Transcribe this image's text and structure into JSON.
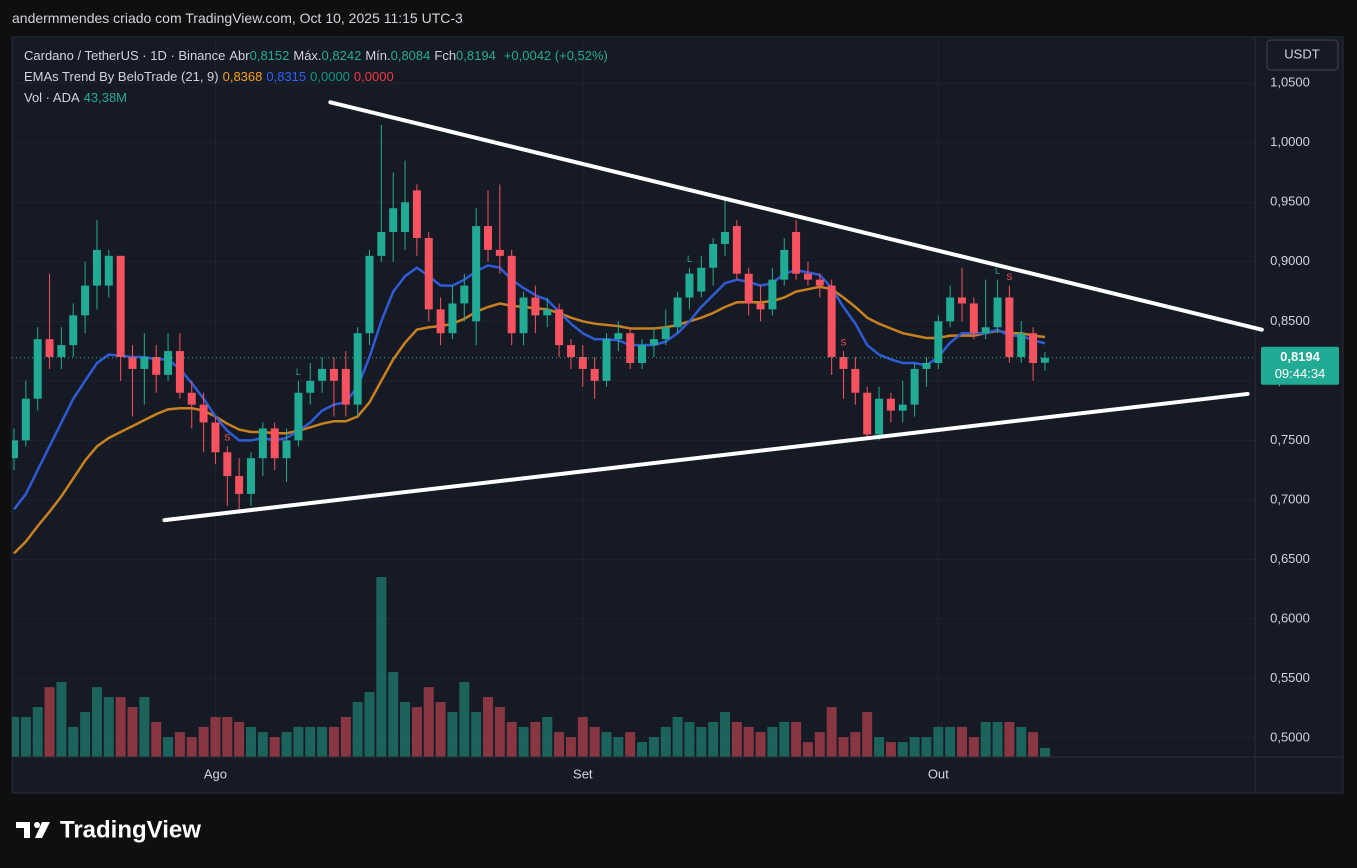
{
  "header": {
    "caption": "andermmendes criado com TradingView.com, Oct 10, 2025 11:15 UTC-3"
  },
  "chart_data": {
    "type": "candlestick",
    "symbol": "Cardano / TetherUS · 1D · Binance",
    "ohlc_keys": [
      "Abr",
      "Máx.",
      "Mín.",
      "Fch"
    ],
    "ohlc_labels": [
      "0,8152",
      "0,8242",
      "0,8084",
      "0,8194"
    ],
    "change_label": "+0,0042 (+0,52%)",
    "indicator": {
      "name": "EMAs Trend By BeloTrade (21, 9)",
      "value_labels": [
        "0,8368",
        "0,8315",
        "0,0000",
        "0,0000"
      ],
      "value_colors": [
        "#f7a21b",
        "#2962ff",
        "#089981",
        "#f23645"
      ]
    },
    "volume_title": "Vol · ADA",
    "volume_label": "43,38M",
    "categories": [
      null,
      null,
      null,
      null,
      null,
      null,
      null,
      null,
      null,
      null,
      null,
      null,
      null,
      null,
      null,
      null,
      null,
      "Ago",
      null,
      null,
      null,
      null,
      null,
      null,
      null,
      null,
      null,
      null,
      null,
      null,
      null,
      null,
      null,
      null,
      null,
      null,
      null,
      null,
      null,
      null,
      null,
      null,
      null,
      null,
      null,
      null,
      null,
      null,
      "Set",
      null,
      null,
      null,
      null,
      null,
      null,
      null,
      null,
      null,
      null,
      null,
      null,
      null,
      null,
      null,
      null,
      null,
      null,
      null,
      null,
      null,
      null,
      null,
      null,
      null,
      null,
      null,
      null,
      null,
      "Out",
      null,
      null,
      null,
      null,
      null,
      null,
      null,
      null,
      null
    ],
    "open": [
      0.735,
      0.75,
      0.785,
      0.835,
      0.82,
      0.83,
      0.855,
      0.88,
      0.88,
      0.905,
      0.82,
      0.81,
      0.82,
      0.805,
      0.825,
      0.79,
      0.78,
      0.765,
      0.74,
      0.72,
      0.705,
      0.735,
      0.76,
      0.735,
      0.75,
      0.79,
      0.8,
      0.81,
      0.81,
      0.78,
      0.84,
      0.905,
      0.925,
      0.925,
      0.96,
      0.92,
      0.86,
      0.84,
      0.865,
      0.85,
      0.93,
      0.91,
      0.905,
      0.84,
      0.87,
      0.855,
      0.86,
      0.83,
      0.82,
      0.81,
      0.8,
      0.835,
      0.84,
      0.815,
      0.83,
      0.835,
      0.845,
      0.87,
      0.875,
      0.895,
      0.915,
      0.93,
      0.89,
      0.865,
      0.86,
      0.885,
      0.925,
      0.89,
      0.885,
      0.88,
      0.82,
      0.81,
      0.79,
      0.755,
      0.785,
      0.775,
      0.78,
      0.81,
      0.815,
      0.85,
      0.87,
      0.865,
      0.84,
      0.845,
      0.87,
      0.82,
      0.84,
      0.8152
    ],
    "high": [
      0.76,
      0.8,
      0.845,
      0.89,
      0.845,
      0.865,
      0.9,
      0.935,
      0.91,
      0.905,
      0.83,
      0.84,
      0.83,
      0.84,
      0.84,
      0.8,
      0.79,
      0.77,
      0.745,
      0.735,
      0.74,
      0.765,
      0.765,
      0.76,
      0.8,
      0.815,
      0.82,
      0.82,
      0.825,
      0.845,
      0.91,
      1.015,
      0.975,
      0.985,
      0.965,
      0.925,
      0.87,
      0.88,
      0.89,
      0.945,
      0.96,
      0.965,
      0.91,
      0.875,
      0.88,
      0.87,
      0.865,
      0.835,
      0.83,
      0.82,
      0.84,
      0.85,
      0.845,
      0.835,
      0.845,
      0.86,
      0.875,
      0.895,
      0.905,
      0.92,
      0.955,
      0.935,
      0.895,
      0.88,
      0.895,
      0.92,
      0.935,
      0.9,
      0.89,
      0.885,
      0.825,
      0.82,
      0.795,
      0.795,
      0.79,
      0.8,
      0.815,
      0.82,
      0.855,
      0.88,
      0.895,
      0.87,
      0.885,
      0.885,
      0.88,
      0.85,
      0.845,
      0.8242
    ],
    "low": [
      0.725,
      0.745,
      0.775,
      0.81,
      0.81,
      0.82,
      0.84,
      0.86,
      0.87,
      0.8,
      0.77,
      0.78,
      0.79,
      0.8,
      0.785,
      0.76,
      0.74,
      0.73,
      0.695,
      0.69,
      0.695,
      0.72,
      0.725,
      0.715,
      0.745,
      0.78,
      0.79,
      0.77,
      0.77,
      0.77,
      0.83,
      0.9,
      0.9,
      0.91,
      0.905,
      0.85,
      0.83,
      0.835,
      0.85,
      0.83,
      0.9,
      0.89,
      0.83,
      0.83,
      0.84,
      0.845,
      0.82,
      0.81,
      0.795,
      0.785,
      0.795,
      0.825,
      0.81,
      0.81,
      0.82,
      0.83,
      0.84,
      0.86,
      0.87,
      0.88,
      0.905,
      0.885,
      0.855,
      0.85,
      0.855,
      0.88,
      0.885,
      0.88,
      0.87,
      0.805,
      0.785,
      0.78,
      0.75,
      0.75,
      0.765,
      0.765,
      0.77,
      0.795,
      0.81,
      0.845,
      0.85,
      0.835,
      0.835,
      0.84,
      0.815,
      0.815,
      0.8,
      0.8084
    ],
    "close": [
      0.75,
      0.785,
      0.835,
      0.82,
      0.83,
      0.855,
      0.88,
      0.91,
      0.905,
      0.82,
      0.81,
      0.82,
      0.805,
      0.825,
      0.79,
      0.78,
      0.765,
      0.74,
      0.72,
      0.705,
      0.735,
      0.76,
      0.735,
      0.75,
      0.79,
      0.8,
      0.81,
      0.8,
      0.78,
      0.84,
      0.905,
      0.925,
      0.945,
      0.95,
      0.92,
      0.86,
      0.84,
      0.865,
      0.88,
      0.93,
      0.91,
      0.905,
      0.84,
      0.87,
      0.855,
      0.86,
      0.83,
      0.82,
      0.81,
      0.8,
      0.835,
      0.84,
      0.815,
      0.83,
      0.835,
      0.845,
      0.87,
      0.89,
      0.895,
      0.915,
      0.925,
      0.89,
      0.865,
      0.86,
      0.885,
      0.91,
      0.89,
      0.885,
      0.88,
      0.82,
      0.81,
      0.79,
      0.755,
      0.785,
      0.775,
      0.78,
      0.81,
      0.815,
      0.85,
      0.87,
      0.865,
      0.84,
      0.845,
      0.87,
      0.82,
      0.84,
      0.815,
      0.8194
    ],
    "volume": [
      193,
      193,
      241,
      337,
      362,
      145,
      217,
      337,
      289,
      289,
      241,
      289,
      169,
      96,
      120,
      96,
      145,
      193,
      193,
      169,
      145,
      120,
      96,
      120,
      145,
      145,
      145,
      145,
      193,
      265,
      313,
      868,
      410,
      265,
      241,
      337,
      265,
      217,
      362,
      217,
      289,
      241,
      169,
      145,
      169,
      193,
      120,
      96,
      193,
      145,
      120,
      96,
      120,
      72,
      96,
      145,
      193,
      169,
      145,
      169,
      217,
      169,
      145,
      120,
      145,
      169,
      169,
      72,
      120,
      241,
      96,
      120,
      217,
      96,
      72,
      72,
      96,
      96,
      145,
      145,
      145,
      96,
      169,
      169,
      169,
      145,
      120,
      43.38
    ],
    "up_color": "#22ab94",
    "down_color": "#f7525f",
    "ema_lines": [
      {
        "color": "#c8811e",
        "values": [
          0.655,
          0.665,
          0.678,
          0.69,
          0.703,
          0.718,
          0.733,
          0.745,
          0.752,
          0.757,
          0.762,
          0.767,
          0.772,
          0.776,
          0.777,
          0.777,
          0.775,
          0.77,
          0.764,
          0.759,
          0.757,
          0.757,
          0.756,
          0.756,
          0.758,
          0.761,
          0.764,
          0.766,
          0.766,
          0.77,
          0.782,
          0.8,
          0.818,
          0.832,
          0.843,
          0.845,
          0.846,
          0.848,
          0.852,
          0.858,
          0.862,
          0.865,
          0.863,
          0.862,
          0.861,
          0.86,
          0.857,
          0.853,
          0.85,
          0.848,
          0.847,
          0.846,
          0.844,
          0.844,
          0.844,
          0.845,
          0.847,
          0.85,
          0.853,
          0.857,
          0.862,
          0.866,
          0.866,
          0.866,
          0.867,
          0.87,
          0.875,
          0.877,
          0.879,
          0.877,
          0.87,
          0.862,
          0.853,
          0.848,
          0.844,
          0.84,
          0.838,
          0.836,
          0.836,
          0.838,
          0.838,
          0.838,
          0.84,
          0.842,
          0.84,
          0.84,
          0.838,
          0.8368
        ]
      },
      {
        "color": "#2f5bd6",
        "values": [
          0.692,
          0.705,
          0.725,
          0.745,
          0.765,
          0.785,
          0.8,
          0.815,
          0.822,
          0.821,
          0.82,
          0.82,
          0.818,
          0.818,
          0.81,
          0.798,
          0.785,
          0.77,
          0.758,
          0.75,
          0.75,
          0.752,
          0.75,
          0.752,
          0.758,
          0.765,
          0.775,
          0.78,
          0.782,
          0.795,
          0.82,
          0.85,
          0.875,
          0.888,
          0.895,
          0.888,
          0.88,
          0.88,
          0.885,
          0.892,
          0.897,
          0.895,
          0.885,
          0.878,
          0.872,
          0.868,
          0.858,
          0.848,
          0.84,
          0.835,
          0.835,
          0.834,
          0.83,
          0.83,
          0.83,
          0.833,
          0.84,
          0.85,
          0.862,
          0.872,
          0.882,
          0.885,
          0.883,
          0.88,
          0.882,
          0.89,
          0.893,
          0.891,
          0.889,
          0.878,
          0.862,
          0.848,
          0.83,
          0.822,
          0.818,
          0.815,
          0.815,
          0.813,
          0.82,
          0.832,
          0.84,
          0.84,
          0.84,
          0.843,
          0.838,
          0.838,
          0.834,
          0.8315
        ]
      }
    ],
    "ylim": [
      0.484,
      1.088
    ],
    "yticks": [
      {
        "value": 0.5,
        "label": "0,5000"
      },
      {
        "value": 0.55,
        "label": "0,5500"
      },
      {
        "value": 0.6,
        "label": "0,6000"
      },
      {
        "value": 0.65,
        "label": "0,6500"
      },
      {
        "value": 0.7,
        "label": "0,7000"
      },
      {
        "value": 0.75,
        "label": "0,7500"
      },
      {
        "value": 0.8,
        "label": "0,8000"
      },
      {
        "value": 0.85,
        "label": "0,8500"
      },
      {
        "value": 0.9,
        "label": "0,9000"
      },
      {
        "value": 0.95,
        "label": "0,9500"
      },
      {
        "value": 1.0,
        "label": "1,0000"
      },
      {
        "value": 1.05,
        "label": "1,0500"
      }
    ],
    "grid": true,
    "last_price_label": "0,8194",
    "countdown": "09:44:34",
    "currency": "USDT",
    "trendlines": [
      {
        "color": "#ffffff",
        "x": [
          26.7,
          105.3
        ],
        "y": [
          1.034,
          0.843
        ]
      },
      {
        "color": "#ffffff",
        "x": [
          12.7,
          104.1
        ],
        "y": [
          0.683,
          0.789
        ]
      }
    ],
    "signals": [
      {
        "index": 18,
        "text": "S"
      },
      {
        "index": 24,
        "text": "L"
      },
      {
        "index": 57,
        "text": "L"
      },
      {
        "index": 70,
        "text": "S"
      },
      {
        "index": 83,
        "text": "L"
      },
      {
        "index": 84,
        "text": "S"
      }
    ]
  },
  "footer": {
    "logo": "TradingView"
  }
}
